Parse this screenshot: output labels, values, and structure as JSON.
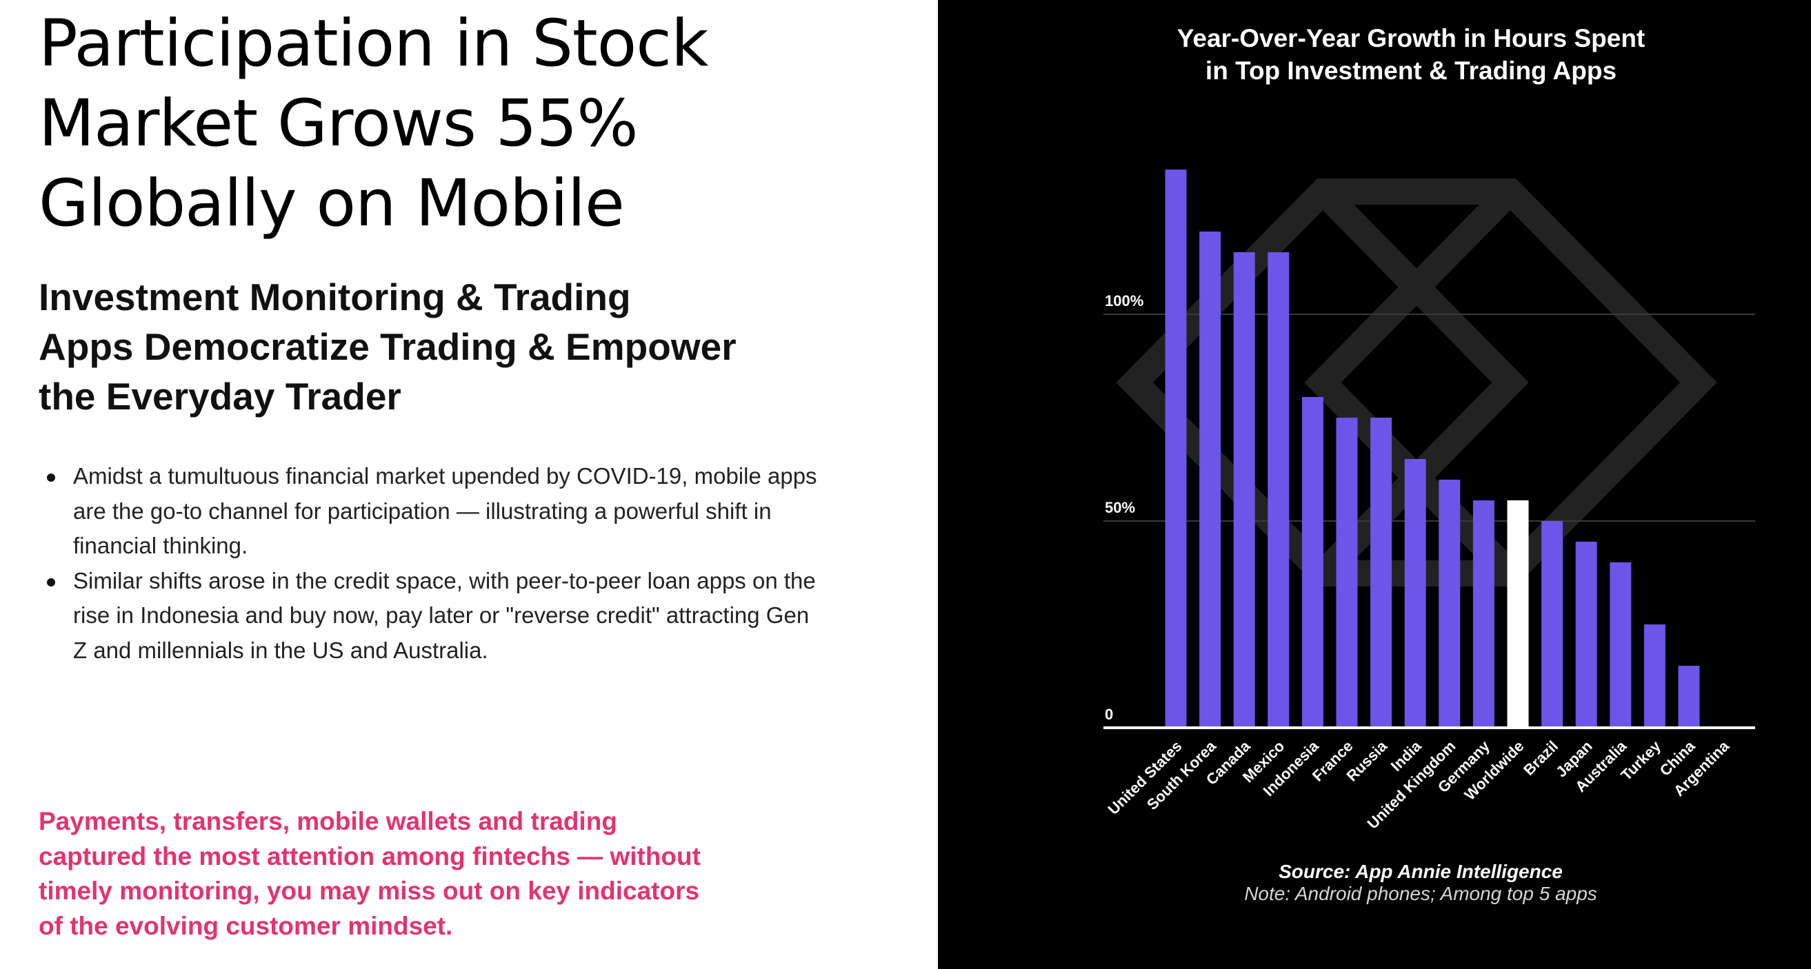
{
  "headline": {
    "lines": [
      "Participation in Stock",
      "Market Grows 55%",
      "Globally on Mobile"
    ]
  },
  "subheadline": {
    "lines": [
      "Investment Monitoring & Trading",
      "Apps Democratize Trading & Empower",
      "the Everyday Trader"
    ]
  },
  "bullets": [
    "Amidst a tumultuous financial market upended by COVID-19, mobile apps are the go-to channel for participation — illustrating a powerful shift in financial thinking.",
    "Similar shifts arose in the credit space, with peer-to-peer loan apps on the rise in Indonesia and buy now, pay later or \"reverse credit\" attracting Gen Z and millennials in the US and Australia."
  ],
  "callout": {
    "lines": [
      "Payments, transfers, mobile wallets and trading",
      "captured the most attention among fintechs — without",
      "timely monitoring, you may miss out on key indicators",
      "of the evolving customer mindset."
    ]
  },
  "colors": {
    "bar": "#6c55e8",
    "highlight_bar": "#ffffff",
    "callout": "#e3336f",
    "panel_background": "#000000",
    "grid": "#3a3a3a"
  },
  "chart_data": {
    "type": "bar",
    "title_lines": [
      "Year-Over-Year Growth in Hours Spent",
      "in Top Investment & Trading Apps"
    ],
    "categories": [
      "United States",
      "South Korea",
      "Canada",
      "Mexico",
      "Indonesia",
      "France",
      "Russia",
      "India",
      "United Kingdom",
      "Germany",
      "Worldwide",
      "Brazil",
      "Japan",
      "Australia",
      "Turkey",
      "China",
      "Argentina"
    ],
    "values": [
      135,
      120,
      115,
      115,
      80,
      75,
      75,
      65,
      60,
      55,
      55,
      50,
      45,
      40,
      25,
      15,
      0
    ],
    "highlight_category": "Worldwide",
    "ytick_values": [
      0,
      50,
      100
    ],
    "ytick_labels": [
      "0",
      "50%",
      "100%"
    ],
    "ylim": [
      0,
      140
    ],
    "grid": true,
    "legend": "none",
    "source": "Source: App Annie Intelligence",
    "note": "Note: Android phones; Among top 5 apps"
  }
}
